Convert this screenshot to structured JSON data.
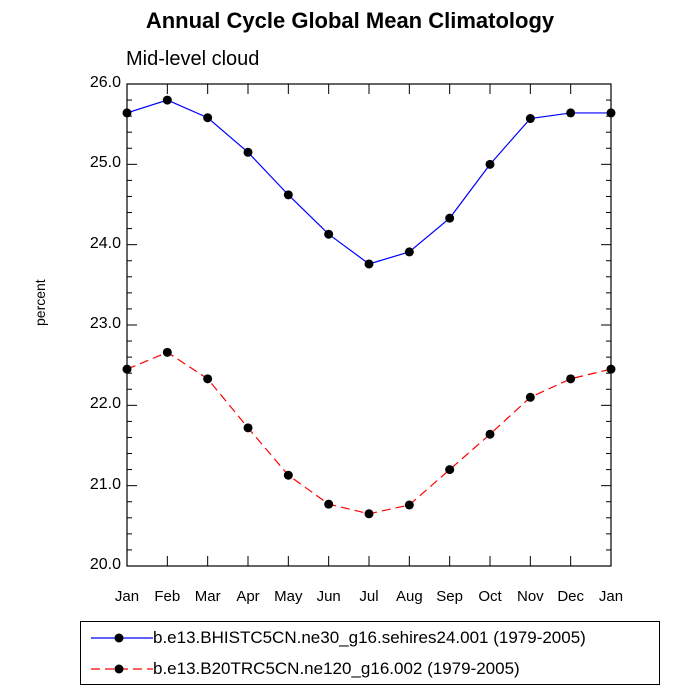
{
  "chart_data": {
    "type": "line",
    "title": "Annual Cycle Global Mean Climatology",
    "subtitle": "Mid-level cloud",
    "ylabel": "percent",
    "xlabel": "",
    "ylim": [
      20.0,
      26.0
    ],
    "yticks": [
      "20.0",
      "21.0",
      "22.0",
      "23.0",
      "24.0",
      "25.0",
      "26.0"
    ],
    "categories": [
      "Jan",
      "Feb",
      "Mar",
      "Apr",
      "May",
      "Jun",
      "Jul",
      "Aug",
      "Sep",
      "Oct",
      "Nov",
      "Dec",
      "Jan"
    ],
    "series": [
      {
        "name": "b.e13.BHISTC5CN.ne30_g16.sehires24.001 (1979-2005)",
        "color": "#0000ff",
        "dash": "solid",
        "values": [
          25.64,
          25.8,
          25.58,
          25.15,
          24.62,
          24.13,
          23.76,
          23.91,
          24.33,
          25.0,
          25.57,
          25.64,
          25.64
        ]
      },
      {
        "name": "b.e13.B20TRC5CN.ne120_g16.002 (1979-2005)",
        "color": "#ff0000",
        "dash": "dashed",
        "values": [
          22.45,
          22.66,
          22.33,
          21.72,
          21.13,
          20.77,
          20.65,
          20.76,
          21.2,
          21.64,
          22.1,
          22.33,
          22.45
        ]
      }
    ]
  }
}
